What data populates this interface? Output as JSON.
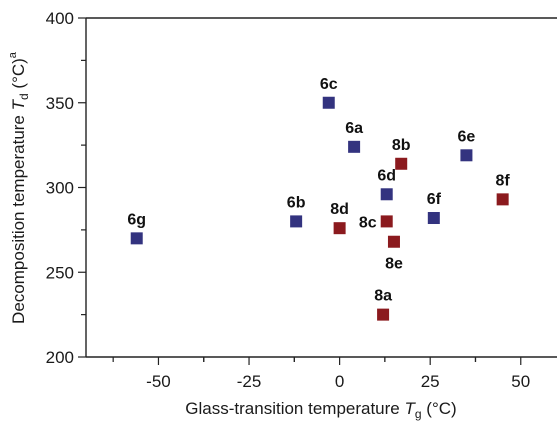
{
  "chart_data": {
    "type": "scatter",
    "xlabel": "Glass-transition temperature",
    "xlabel_symbol": "T",
    "xlabel_subscript": "g",
    "xlabel_unit": " (°C)",
    "ylabel": "Decomposition temperature",
    "ylabel_symbol": "T",
    "ylabel_subscript": "d",
    "ylabel_unit": " (°C)",
    "ylabel_superscript": "a",
    "xlim": [
      -70,
      60
    ],
    "ylim": [
      200,
      400
    ],
    "xticks": [
      -50,
      -25,
      0,
      25,
      50
    ],
    "xtick_labels": [
      "-50",
      "-25",
      "0",
      "25",
      "50"
    ],
    "yticks": [
      200,
      250,
      300,
      350,
      400
    ],
    "ytick_labels": [
      "200",
      "250",
      "300",
      "350",
      "400"
    ],
    "grid": false,
    "legend": "none",
    "colors": {
      "blue": "#33337f",
      "red": "#8b1a1e"
    },
    "points": [
      {
        "label": "6a",
        "x": 4,
        "y": 324,
        "color": "blue",
        "label_pos": "above"
      },
      {
        "label": "6b",
        "x": -12,
        "y": 280,
        "color": "blue",
        "label_pos": "above"
      },
      {
        "label": "6c",
        "x": -3,
        "y": 350,
        "color": "blue",
        "label_pos": "above"
      },
      {
        "label": "6d",
        "x": 13,
        "y": 296,
        "color": "blue",
        "label_pos": "above"
      },
      {
        "label": "6e",
        "x": 35,
        "y": 319,
        "color": "blue",
        "label_pos": "above"
      },
      {
        "label": "6f",
        "x": 26,
        "y": 282,
        "color": "blue",
        "label_pos": "above"
      },
      {
        "label": "6g",
        "x": -56,
        "y": 270,
        "color": "blue",
        "label_pos": "above"
      },
      {
        "label": "8a",
        "x": 12,
        "y": 225,
        "color": "red",
        "label_pos": "above"
      },
      {
        "label": "8b",
        "x": 17,
        "y": 314,
        "color": "red",
        "label_pos": "above"
      },
      {
        "label": "8c",
        "x": 13,
        "y": 280,
        "color": "red",
        "label_pos": "left"
      },
      {
        "label": "8d",
        "x": 0,
        "y": 276,
        "color": "red",
        "label_pos": "above"
      },
      {
        "label": "8e",
        "x": 15,
        "y": 268,
        "color": "red",
        "label_pos": "below"
      },
      {
        "label": "8f",
        "x": 45,
        "y": 293,
        "color": "red",
        "label_pos": "above"
      }
    ]
  }
}
